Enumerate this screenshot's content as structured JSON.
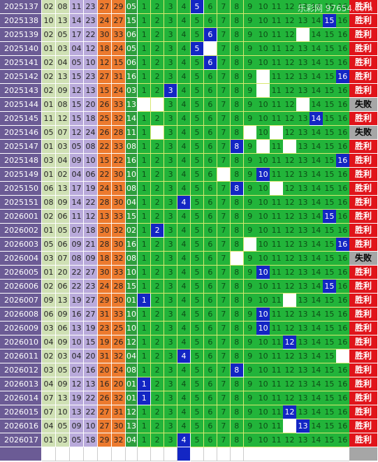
{
  "watermark": "乐彩网 97654.com",
  "grid_numbers": [
    "1",
    "2",
    "3",
    "4",
    "5",
    "6",
    "7",
    "8",
    "9",
    "10",
    "11",
    "12",
    "13",
    "14",
    "15",
    "16"
  ],
  "results": {
    "win": "胜利",
    "lose": "失败"
  },
  "rows": [
    {
      "period": "2025137",
      "reds": [
        "02",
        "08",
        "11",
        "23",
        "27",
        "29"
      ],
      "blue": "05",
      "hit": 5,
      "blank": [],
      "result": "win"
    },
    {
      "period": "2025138",
      "reds": [
        "10",
        "13",
        "14",
        "23",
        "24",
        "27"
      ],
      "blue": "15",
      "hit": 15,
      "blank": [],
      "result": "win"
    },
    {
      "period": "2025139",
      "reds": [
        "02",
        "05",
        "17",
        "22",
        "30",
        "33"
      ],
      "blue": "06",
      "hit": 6,
      "blank": [
        13
      ],
      "result": "win"
    },
    {
      "period": "2025140",
      "reds": [
        "01",
        "03",
        "04",
        "12",
        "18",
        "24"
      ],
      "blue": "05",
      "hit": 5,
      "blank": [
        6
      ],
      "result": "win"
    },
    {
      "period": "2025141",
      "reds": [
        "02",
        "04",
        "05",
        "10",
        "12",
        "15"
      ],
      "blue": "06",
      "hit": 6,
      "blank": [],
      "result": "win"
    },
    {
      "period": "2025142",
      "reds": [
        "02",
        "13",
        "15",
        "23",
        "27",
        "31"
      ],
      "blue": "16",
      "hit": 16,
      "blank": [
        10
      ],
      "result": "win"
    },
    {
      "period": "2025143",
      "reds": [
        "02",
        "09",
        "12",
        "13",
        "15",
        "24"
      ],
      "blue": "03",
      "hit": 3,
      "blank": [
        10
      ],
      "result": "win"
    },
    {
      "period": "2025144",
      "reds": [
        "01",
        "08",
        "15",
        "20",
        "26",
        "33"
      ],
      "blue": "13",
      "hit": null,
      "blank": [
        1,
        2,
        13
      ],
      "result": "lose"
    },
    {
      "period": "2025145",
      "reds": [
        "11",
        "12",
        "15",
        "18",
        "25",
        "32"
      ],
      "blue": "14",
      "hit": 14,
      "blank": [],
      "result": "win"
    },
    {
      "period": "2025146",
      "reds": [
        "05",
        "07",
        "12",
        "24",
        "26",
        "28"
      ],
      "blue": "11",
      "hit": null,
      "blank": [
        2,
        9,
        11
      ],
      "result": "lose"
    },
    {
      "period": "2025147",
      "reds": [
        "01",
        "03",
        "05",
        "08",
        "22",
        "33"
      ],
      "blue": "08",
      "hit": 8,
      "blank": [
        10,
        12
      ],
      "result": "win"
    },
    {
      "period": "2025148",
      "reds": [
        "03",
        "04",
        "09",
        "10",
        "15",
        "22"
      ],
      "blue": "16",
      "hit": 16,
      "blank": [],
      "result": "win"
    },
    {
      "period": "2025149",
      "reds": [
        "01",
        "02",
        "04",
        "06",
        "22",
        "30"
      ],
      "blue": "10",
      "hit": 10,
      "blank": [
        7
      ],
      "result": "win"
    },
    {
      "period": "2025150",
      "reds": [
        "06",
        "13",
        "17",
        "19",
        "24",
        "31"
      ],
      "blue": "08",
      "hit": 8,
      "blank": [
        11
      ],
      "result": "win"
    },
    {
      "period": "2025151",
      "reds": [
        "08",
        "09",
        "14",
        "22",
        "28",
        "30"
      ],
      "blue": "04",
      "hit": 4,
      "blank": [],
      "result": "win"
    },
    {
      "period": "2026001",
      "reds": [
        "02",
        "06",
        "11",
        "12",
        "13",
        "33"
      ],
      "blue": "15",
      "hit": 15,
      "blank": [],
      "result": "win"
    },
    {
      "period": "2026002",
      "reds": [
        "01",
        "05",
        "07",
        "18",
        "30",
        "32"
      ],
      "blue": "02",
      "hit": 2,
      "blank": [],
      "result": "win"
    },
    {
      "period": "2026003",
      "reds": [
        "05",
        "06",
        "09",
        "21",
        "28",
        "30"
      ],
      "blue": "16",
      "hit": 16,
      "blank": [
        9
      ],
      "result": "win"
    },
    {
      "period": "2026004",
      "reds": [
        "03",
        "07",
        "08",
        "09",
        "18",
        "32"
      ],
      "blue": "08",
      "hit": null,
      "blank": [
        8
      ],
      "result": "lose"
    },
    {
      "period": "2026005",
      "reds": [
        "01",
        "20",
        "22",
        "27",
        "30",
        "33"
      ],
      "blue": "10",
      "hit": 10,
      "blank": [],
      "result": "win"
    },
    {
      "period": "2026006",
      "reds": [
        "02",
        "06",
        "22",
        "23",
        "24",
        "28"
      ],
      "blue": "15",
      "hit": 15,
      "blank": [],
      "result": "win"
    },
    {
      "period": "2026007",
      "reds": [
        "09",
        "13",
        "19",
        "27",
        "29",
        "30"
      ],
      "blue": "01",
      "hit": 1,
      "blank": [
        12
      ],
      "result": "win"
    },
    {
      "period": "2026008",
      "reds": [
        "06",
        "09",
        "16",
        "27",
        "31",
        "33"
      ],
      "blue": "10",
      "hit": 10,
      "blank": [],
      "result": "win"
    },
    {
      "period": "2026009",
      "reds": [
        "03",
        "06",
        "13",
        "19",
        "23",
        "25"
      ],
      "blue": "10",
      "hit": 10,
      "blank": [],
      "result": "win"
    },
    {
      "period": "2026010",
      "reds": [
        "04",
        "09",
        "10",
        "15",
        "19",
        "26"
      ],
      "blue": "12",
      "hit": 12,
      "blank": [],
      "result": "win"
    },
    {
      "period": "2026011",
      "reds": [
        "02",
        "03",
        "04",
        "20",
        "31",
        "32"
      ],
      "blue": "04",
      "hit": 4,
      "blank": [
        16
      ],
      "result": "win"
    },
    {
      "period": "2026012",
      "reds": [
        "03",
        "05",
        "07",
        "16",
        "20",
        "24"
      ],
      "blue": "08",
      "hit": 8,
      "blank": [],
      "result": "win"
    },
    {
      "period": "2026013",
      "reds": [
        "04",
        "09",
        "12",
        "13",
        "16",
        "20"
      ],
      "blue": "01",
      "hit": 1,
      "blank": [],
      "result": "win"
    },
    {
      "period": "2026014",
      "reds": [
        "07",
        "13",
        "19",
        "22",
        "26",
        "32"
      ],
      "blue": "01",
      "hit": 1,
      "blank": [],
      "result": "win"
    },
    {
      "period": "2026015",
      "reds": [
        "07",
        "10",
        "13",
        "22",
        "27",
        "31"
      ],
      "blue": "12",
      "hit": 12,
      "blank": [],
      "result": "win"
    },
    {
      "period": "2026016",
      "reds": [
        "04",
        "05",
        "09",
        "10",
        "27",
        "30"
      ],
      "blue": "13",
      "hit": 13,
      "blank": [
        12
      ],
      "result": "win"
    },
    {
      "period": "2026017",
      "reds": [
        "01",
        "03",
        "05",
        "18",
        "29",
        "32"
      ],
      "blue": "04",
      "hit": 4,
      "blank": [],
      "result": "win"
    }
  ]
}
